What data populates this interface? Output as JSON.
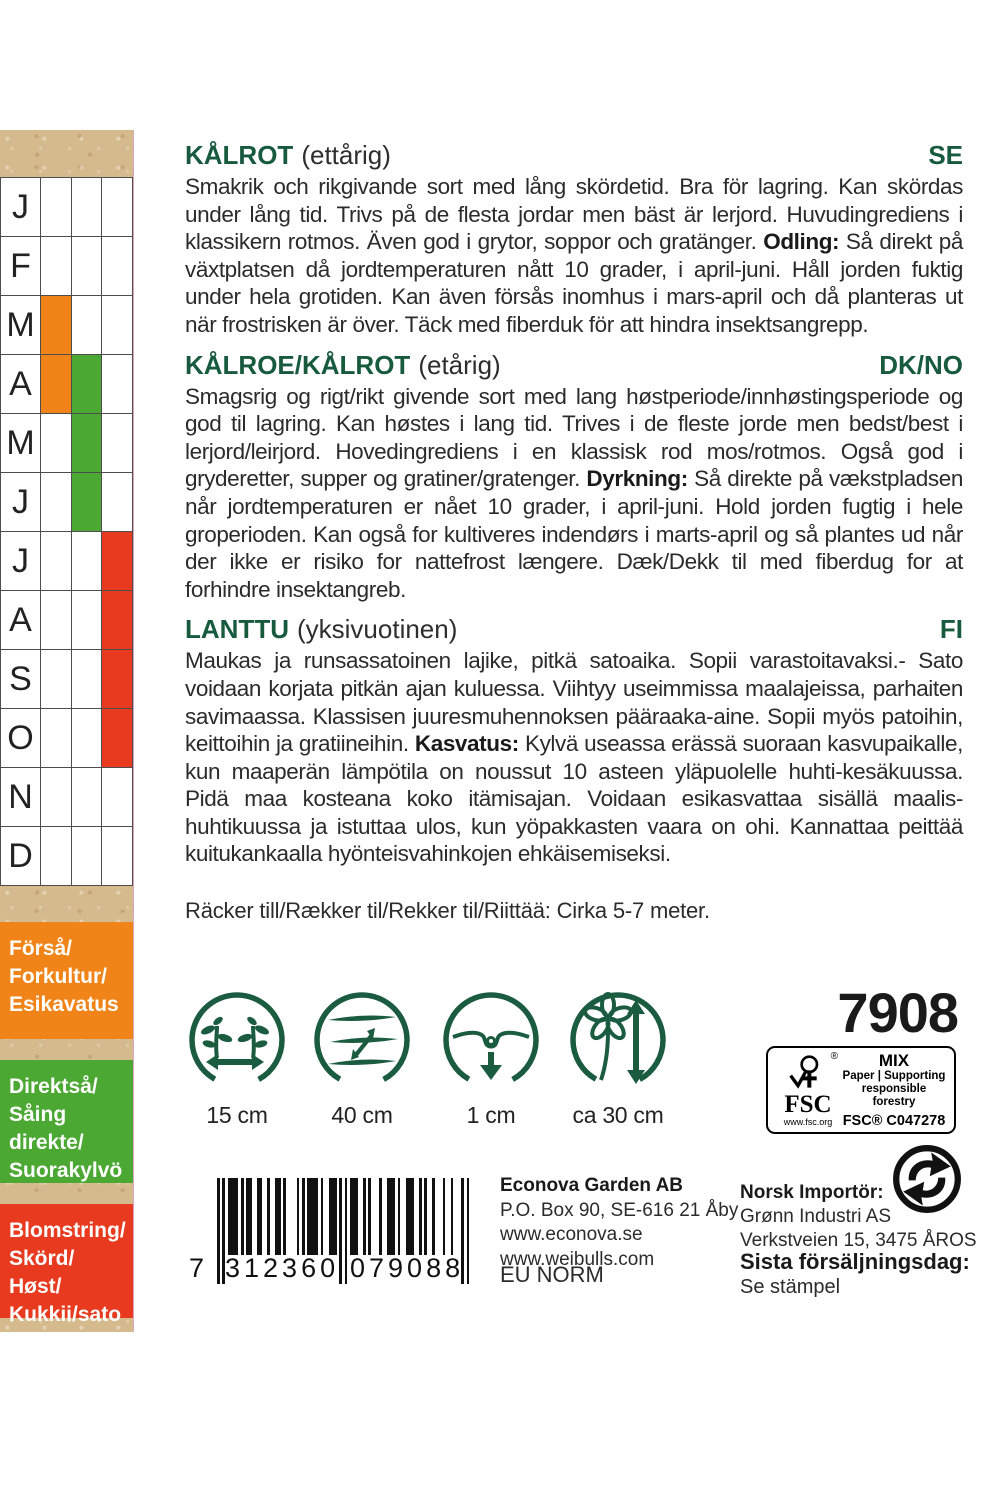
{
  "colors": {
    "accent_green": "#175a3e",
    "presow_orange": "#f08418",
    "direct_green": "#4ba832",
    "harvest_red": "#e73a1e"
  },
  "calendar": {
    "months": [
      {
        "letter": "J",
        "cols": [
          "",
          "",
          ""
        ]
      },
      {
        "letter": "F",
        "cols": [
          "",
          "",
          ""
        ]
      },
      {
        "letter": "M",
        "cols": [
          "presow",
          "",
          ""
        ]
      },
      {
        "letter": "A",
        "cols": [
          "presow",
          "direct",
          ""
        ]
      },
      {
        "letter": "M",
        "cols": [
          "",
          "direct",
          ""
        ]
      },
      {
        "letter": "J",
        "cols": [
          "",
          "direct",
          ""
        ]
      },
      {
        "letter": "J",
        "cols": [
          "",
          "",
          "harvest"
        ]
      },
      {
        "letter": "A",
        "cols": [
          "",
          "",
          "harvest"
        ]
      },
      {
        "letter": "S",
        "cols": [
          "",
          "",
          "harvest"
        ]
      },
      {
        "letter": "O",
        "cols": [
          "",
          "",
          "harvest"
        ]
      },
      {
        "letter": "N",
        "cols": [
          "",
          "",
          ""
        ]
      },
      {
        "letter": "D",
        "cols": [
          "",
          "",
          ""
        ]
      }
    ],
    "legend": [
      {
        "key": "presow",
        "label": "Förså/\nForkultur/\nEsikavatus"
      },
      {
        "key": "direct",
        "label": "Direktså/\nSåing\ndirekte/\nSuorakylvö"
      },
      {
        "key": "harvest",
        "label": "Blomstring/\nSkörd/\nHøst/\nKukkii/sato"
      }
    ]
  },
  "sections": [
    {
      "name": "KÅLROT",
      "variant": "(ettårig)",
      "lang": "SE",
      "body_1": "Smakrik och rikgivande sort med lång skördetid. Bra för lagring. Kan skördas under lång tid. Trivs på de flesta jordar men bäst är lerjord. Huvudingrediens i klassikern rotmos. Även god i grytor, soppor och gratänger. ",
      "bold_label": "Odling:",
      "body_2": " Så direkt på växtplatsen då jordtemperaturen nått 10 grader, i april-juni. Håll jorden fuktig under hela grotiden. Kan även försås inomhus i mars-april och då planteras ut när frostrisken är över. Täck med fiberduk för att hindra insektsangrepp."
    },
    {
      "name": "KÅLROE/KÅLROT",
      "variant": "(etårig)",
      "lang": "DK/NO",
      "body_1": "Smagsrig og rigt/rikt givende sort med lang høstperiode/innhøstingsperiode og god til lagring. Kan høstes i lang tid. Trives i de fleste jorde men bedst/best i lerjord/leirjord. Hovedingrediens i en klassisk rod mos/rotmos. Også god i gryderetter, supper og gratiner/gratenger. ",
      "bold_label": "Dyrkning:",
      "body_2": " Så direkte på vækstpladsen når jordtemperaturen er nået 10 grader, i april-juni. Hold jorden fugtig i hele groperioden. Kan også for kultiveres indendørs i marts-april og så plantes ud når der ikke er risiko for nattefrost længere. Dæk/Dekk til med fiberdug for at forhindre insektangreb."
    },
    {
      "name": "LANTTU",
      "variant": "(yksivuotinen)",
      "lang": "FI",
      "body_1": "Maukas ja runsassatoinen lajike, pitkä satoaika. Sopii varastoitavaksi.- Sato voidaan korjata pitkän ajan kuluessa. Viihtyy useimmissa maalajeissa, parhaiten savimaassa. Klassisen juuresmuhennoksen pääraaka-aine. Sopii myös patoihin, keittoihin ja gratiineihin. ",
      "bold_label": "Kasvatus:",
      "body_2": " Kylvä useassa erässä suoraan kasvupaikalle, kun maaperän lämpötila on noussut 10 asteen yläpuolelle huhti-kesäkuussa. Pidä maa kosteana koko itämisajan. Voidaan esikasvattaa sisällä maalis-huhtikuussa ja istuttaa ulos, kun yöpakkasten vaara on ohi. Kannattaa peittää kuitukankaalla hyönteisvahinkojen ehkäisemiseksi."
    }
  ],
  "yield_line": "Räcker till/Rækker til/Rekker til/Riittää: Cirka 5-7 meter.",
  "spacing_icons": [
    {
      "name": "plant-spacing",
      "value": "15 cm"
    },
    {
      "name": "row-spacing",
      "value": "40 cm"
    },
    {
      "name": "sowing-depth",
      "value": "1 cm"
    },
    {
      "name": "plant-height",
      "value": "ca 30 cm"
    }
  ],
  "article_number": "7908",
  "fsc": {
    "acronym": "FSC",
    "reg_mark": "®",
    "url": "www.fsc.org",
    "grade": "MIX",
    "line1": "Paper | Supporting",
    "line2": "responsible forestry",
    "license": "FSC® C047278"
  },
  "barcode": {
    "digits": "7312360079088",
    "display_first": "7",
    "display_left": "312360",
    "display_right": "079088"
  },
  "publisher": {
    "name": "Econova Garden AB",
    "lines": "P.O. Box 90, SE-616 21 Åby\nwww.econova.se\nwww.weibulls.com",
    "norm": "EU NORM"
  },
  "importer": {
    "title": "Norsk Importör:",
    "name": "Grønn Industri AS",
    "address": "Verkstveien 15, 3475 ÅROS"
  },
  "last_sale": {
    "title": "Sista försäljningsdag:",
    "value": "Se stämpel"
  }
}
